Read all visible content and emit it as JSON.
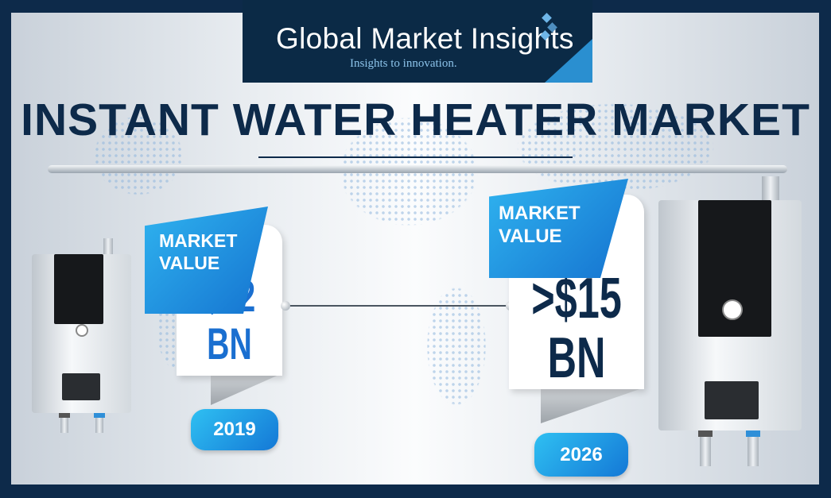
{
  "brand": {
    "name": "Global Market Insights",
    "tagline": "Insights to innovation."
  },
  "title": "INSTANT WATER HEATER MARKET",
  "left": {
    "label_line1": "MARKET",
    "label_line2": "VALUE",
    "value": "$12",
    "unit": "BN",
    "year": "2019"
  },
  "right": {
    "label_line1": "MARKET",
    "label_line2": "VALUE",
    "value": ">$15",
    "unit": "BN",
    "year": "2026"
  },
  "colors": {
    "navy": "#0d2a4a",
    "blue": "#1a6fd0",
    "accent": "#2fb3ef"
  }
}
